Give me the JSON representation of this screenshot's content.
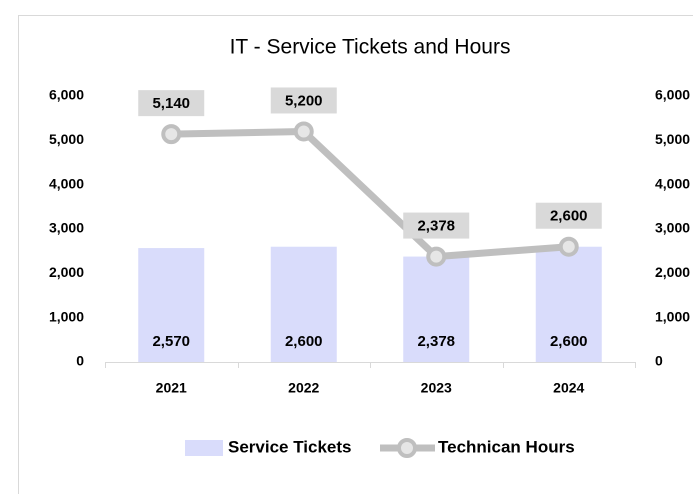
{
  "chart_data": {
    "type": "bar+line",
    "title": "IT - Service Tickets and Hours",
    "categories": [
      "2021",
      "2022",
      "2023",
      "2024"
    ],
    "series": [
      {
        "name": "Service Tickets",
        "type": "bar",
        "color": "#d9dcfb",
        "values": [
          2570,
          2600,
          2378,
          2600
        ],
        "value_labels": [
          "2,570",
          "2,600",
          "2,378",
          "2,600"
        ]
      },
      {
        "name": "Technican Hours",
        "type": "line",
        "axis": "y2",
        "color": "#bfbfbf",
        "values": [
          5140,
          5200,
          2378,
          2600
        ],
        "value_labels": [
          "5,140",
          "5,200",
          "2,378",
          "2,600"
        ]
      }
    ],
    "ylim": [
      0,
      6000
    ],
    "yticks": [
      0,
      {
        "value": 1000,
        "label": "1,000"
      },
      {
        "value": 2000,
        "label": "2,000"
      },
      {
        "value": 3000,
        "label": "3,000"
      },
      {
        "value": 4000,
        "label": "4,000"
      },
      {
        "value": 5000,
        "label": "5,000"
      },
      {
        "value": 6000,
        "label": "6,000"
      }
    ],
    "y2lim": [
      0,
      6000
    ],
    "y2ticks": [
      0,
      {
        "value": 1000,
        "label": "1,000"
      },
      {
        "value": 2000,
        "label": "2,000"
      },
      {
        "value": 3000,
        "label": "3,000"
      },
      {
        "value": 4000,
        "label": "4,000"
      },
      {
        "value": 5000,
        "label": "5,000"
      },
      {
        "value": 6000,
        "label": "6,000"
      }
    ],
    "legend": "bottom"
  }
}
